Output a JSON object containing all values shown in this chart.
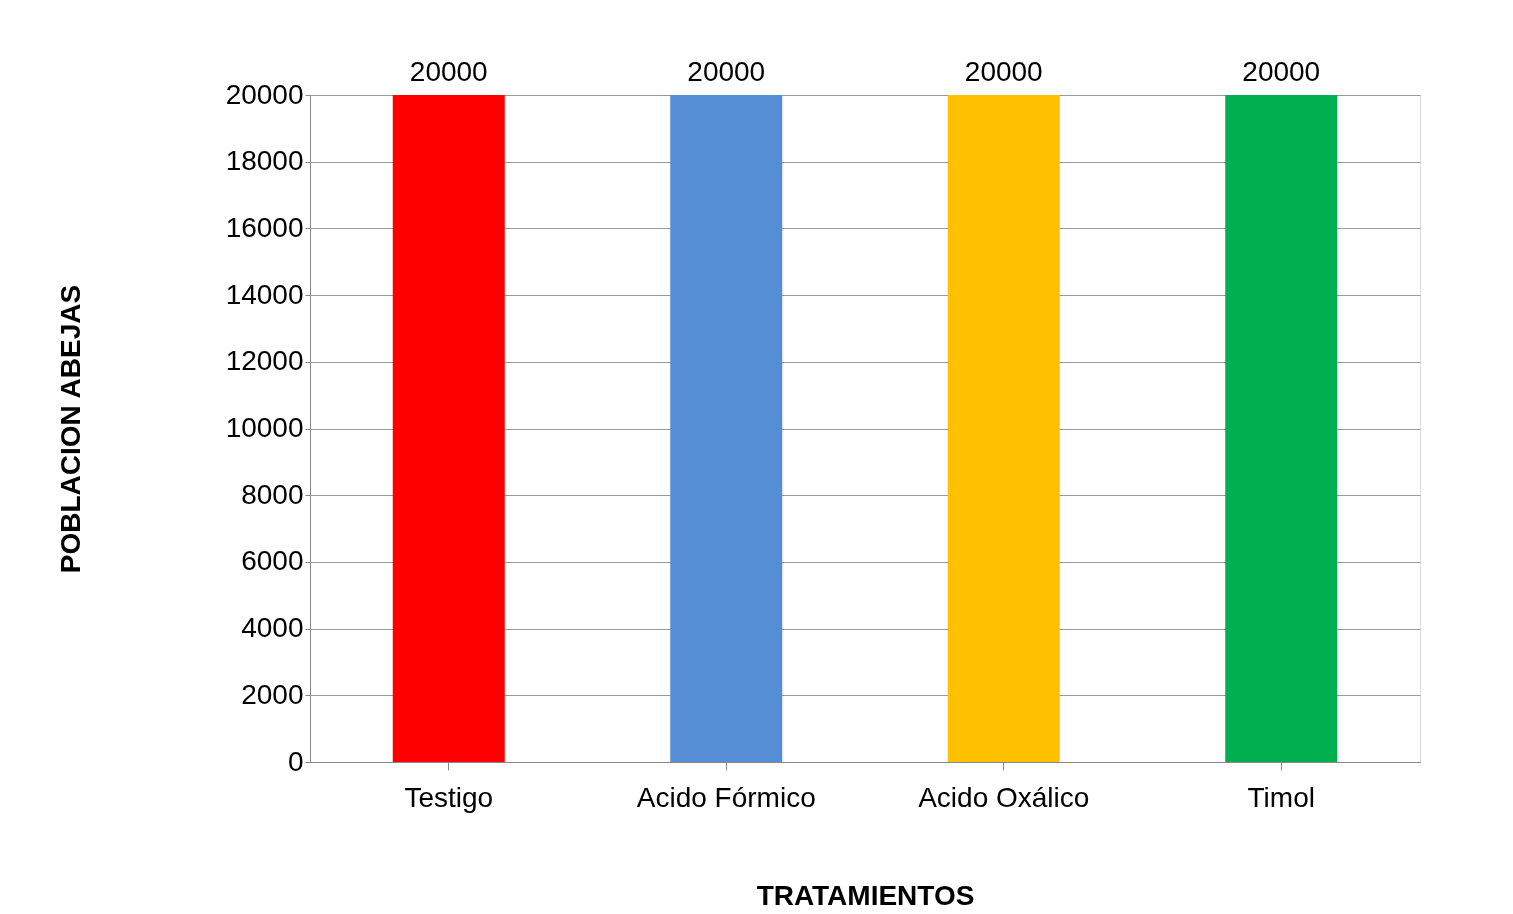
{
  "chart_data": {
    "type": "bar",
    "xlabel": "TRATAMIENTOS",
    "ylabel": "POBLACION  ABEJAS",
    "categories": [
      "Testigo",
      "Acido Fórmico",
      "Acido Oxálico",
      "Timol"
    ],
    "values": [
      20000,
      20000,
      20000,
      20000
    ],
    "colors": [
      "#ff0000",
      "#558ed5",
      "#ffc000",
      "#00b050"
    ],
    "ylim": [
      0,
      20000
    ],
    "yticks": [
      0,
      2000,
      4000,
      6000,
      8000,
      10000,
      12000,
      14000,
      16000,
      18000,
      20000
    ],
    "grid": "y",
    "data_labels": true
  }
}
